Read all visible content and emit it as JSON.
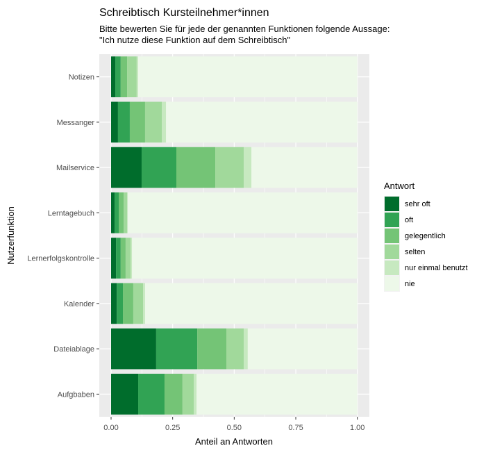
{
  "chart_data": {
    "type": "bar",
    "orientation": "horizontal",
    "stacked": true,
    "title": "Schreibtisch Kursteilnehmer*innen",
    "subtitle": [
      "Bitte bewerten Sie für jede der genannten Funktionen folgende Aussage:",
      "\"Ich nutze diese Funktion auf dem Schreibtisch\""
    ],
    "xlabel": "Anteil an Antworten",
    "ylabel": "Nutzerfunktion",
    "xlim": [
      0,
      1
    ],
    "xticks": [
      0,
      0.25,
      0.5,
      0.75,
      1
    ],
    "xtick_labels": [
      "0.00",
      "0.25",
      "0.50",
      "0.75",
      "1.00"
    ],
    "grid": true,
    "legend": {
      "title": "Antwort",
      "placement": "right"
    },
    "categories": [
      "Notizen",
      "Messanger",
      "Mailservice",
      "Lerntagebuch",
      "Lernerfolgskontrolle",
      "Kalender",
      "Dateiablage",
      "Aufgbaben"
    ],
    "series": [
      {
        "name": "sehr oft",
        "color": "#006D2C",
        "values": [
          0.017,
          0.028,
          0.124,
          0.014,
          0.02,
          0.023,
          0.183,
          0.11
        ]
      },
      {
        "name": "oft",
        "color": "#31A354",
        "values": [
          0.022,
          0.048,
          0.141,
          0.017,
          0.019,
          0.025,
          0.167,
          0.107
        ]
      },
      {
        "name": "gelegentlich",
        "color": "#74C476",
        "values": [
          0.026,
          0.062,
          0.158,
          0.02,
          0.02,
          0.042,
          0.118,
          0.073
        ]
      },
      {
        "name": "selten",
        "color": "#A1D99B",
        "values": [
          0.039,
          0.068,
          0.116,
          0.014,
          0.02,
          0.04,
          0.071,
          0.046
        ]
      },
      {
        "name": "nur einmal benutzt",
        "color": "#C7E9C0",
        "values": [
          0.006,
          0.017,
          0.031,
          0.003,
          0.006,
          0.008,
          0.016,
          0.011
        ]
      },
      {
        "name": "nie",
        "color": "#EDF8E9",
        "values": [
          0.89,
          0.777,
          0.43,
          0.932,
          0.915,
          0.862,
          0.445,
          0.653
        ]
      }
    ]
  }
}
